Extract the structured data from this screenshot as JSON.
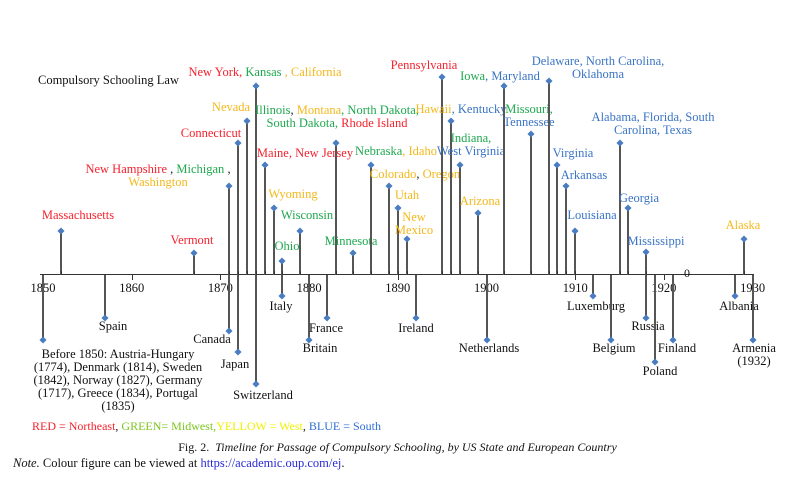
{
  "title": "Compulsory Schooling Law",
  "colors": {
    "NE": "#f5222d",
    "MW": "#1fa84f",
    "W": "#f3b81c",
    "S": "#3a74c4",
    "stem": "#555555",
    "marker": "#4a7cc0"
  },
  "axis": {
    "ticks": [
      "1850",
      "1860",
      "1870",
      "1880",
      "1890",
      "1900",
      "1910",
      "1920",
      "1930"
    ],
    "extra_mark": "0"
  },
  "us_states": [
    {
      "year": 1852,
      "lines": [
        [
          [
            "Massachusetts",
            "NE"
          ]
        ]
      ]
    },
    {
      "year": 1867,
      "lines": [
        [
          [
            "Vermont",
            "NE"
          ]
        ]
      ]
    },
    {
      "year": 1871,
      "lines": [
        [
          [
            "New Hampshire",
            "NE"
          ],
          [
            " , ",
            ""
          ],
          [
            "Michigan",
            "MW"
          ],
          [
            " ,",
            ""
          ]
        ],
        [
          [
            "Washington",
            "W"
          ]
        ]
      ]
    },
    {
      "year": 1872,
      "lines": [
        [
          [
            "Connecticut",
            "NE"
          ]
        ]
      ]
    },
    {
      "year": 1873,
      "lines": [
        [
          [
            "Nevada",
            "W"
          ]
        ]
      ]
    },
    {
      "year": 1874,
      "lines": [
        [
          [
            "New York",
            "NE"
          ],
          [
            ", ",
            "NE"
          ],
          [
            "Kansas",
            "MW"
          ],
          [
            " , ",
            "W"
          ],
          [
            "California",
            "W"
          ]
        ]
      ]
    },
    {
      "year": 1875,
      "lines": [
        [
          [
            "Maine, New Jersey",
            "NE"
          ]
        ]
      ]
    },
    {
      "year": 1876,
      "lines": [
        [
          [
            "Wyoming",
            "W"
          ]
        ]
      ]
    },
    {
      "year": 1877,
      "lines": [
        [
          [
            "Ohio",
            "MW"
          ]
        ]
      ]
    },
    {
      "year": 1879,
      "lines": [
        [
          [
            "Wisconsin",
            "MW"
          ]
        ]
      ]
    },
    {
      "year": 1883,
      "lines": [
        [
          [
            "Illinois",
            "MW"
          ],
          [
            ", ",
            ""
          ],
          [
            "Montana",
            "W"
          ],
          [
            ", ",
            "MW"
          ],
          [
            "North Dakota,",
            "MW"
          ]
        ],
        [
          [
            "South Dakota, ",
            "MW"
          ],
          [
            "Rhode Island",
            "NE"
          ]
        ]
      ]
    },
    {
      "year": 1885,
      "lines": [
        [
          [
            "Minnesota",
            "MW"
          ]
        ]
      ]
    },
    {
      "year": 1887,
      "lines": [
        [
          [
            "Nebraska",
            "MW"
          ],
          [
            ", ",
            "W"
          ],
          [
            "Idaho",
            "W"
          ]
        ]
      ]
    },
    {
      "year": 1889,
      "lines": [
        [
          [
            "Colorado",
            "W"
          ],
          [
            ", ",
            ""
          ],
          [
            "Oregon",
            "W"
          ]
        ]
      ]
    },
    {
      "year": 1890,
      "lines": [
        [
          [
            "Utah",
            "W"
          ]
        ]
      ]
    },
    {
      "year": 1891,
      "lines": [
        [
          [
            "New",
            "W"
          ]
        ],
        [
          [
            "Mexico",
            "W"
          ]
        ]
      ]
    },
    {
      "year": 1895,
      "lines": [
        [
          [
            "Pennsylvania",
            "NE"
          ]
        ]
      ]
    },
    {
      "year": 1896,
      "lines": [
        [
          [
            "Hawaii",
            "W"
          ],
          [
            ", Kentucky",
            "S"
          ]
        ]
      ]
    },
    {
      "year": 1897,
      "lines": [
        [
          [
            "Indiana,",
            "MW"
          ]
        ],
        [
          [
            "West Virginia",
            "S"
          ]
        ]
      ]
    },
    {
      "year": 1899,
      "lines": [
        [
          [
            "Arizona",
            "W"
          ]
        ]
      ]
    },
    {
      "year": 1902,
      "lines": [
        [
          [
            "Iowa",
            "MW"
          ],
          [
            ", Maryland",
            "S"
          ]
        ]
      ]
    },
    {
      "year": 1905,
      "lines": [
        [
          [
            "Missouri,",
            "MW"
          ]
        ],
        [
          [
            "Tennessee",
            "S"
          ]
        ]
      ]
    },
    {
      "year": 1907,
      "lines": [
        [
          [
            "Delaware, North Carolina,",
            "S"
          ]
        ],
        [
          [
            "Oklahoma",
            "S"
          ]
        ]
      ]
    },
    {
      "year": 1908,
      "lines": [
        [
          [
            "Virginia",
            "S"
          ]
        ]
      ]
    },
    {
      "year": 1909,
      "lines": [
        [
          [
            "Arkansas",
            "S"
          ]
        ]
      ]
    },
    {
      "year": 1910,
      "lines": [
        [
          [
            "Louisiana",
            "S"
          ]
        ]
      ]
    },
    {
      "year": 1915,
      "lines": [
        [
          [
            "Alabama, Florida, South",
            "S"
          ]
        ],
        [
          [
            "Carolina, Texas",
            "S"
          ]
        ]
      ]
    },
    {
      "year": 1916,
      "lines": [
        [
          [
            "Georgia",
            "S"
          ]
        ]
      ]
    },
    {
      "year": 1918,
      "lines": [
        [
          [
            "Mississippi",
            "S"
          ]
        ]
      ]
    },
    {
      "year": 1929,
      "lines": [
        [
          [
            "Alaska",
            "W"
          ]
        ]
      ]
    }
  ],
  "countries": [
    {
      "year": 1850,
      "lines": [
        "Before 1850: Austria-Hungary",
        "(1774), Denmark (1814), Sweden",
        "(1842), Norway (1827), Germany",
        "(1717), Greece (1834), Portugal",
        "(1835)"
      ]
    },
    {
      "year": 1857,
      "lines": [
        "Spain"
      ]
    },
    {
      "year": 1871,
      "lines": [
        "Canada"
      ]
    },
    {
      "year": 1872,
      "lines": [
        "Japan"
      ]
    },
    {
      "year": 1874,
      "lines": [
        "Switzerland"
      ]
    },
    {
      "year": 1877,
      "lines": [
        "Italy"
      ]
    },
    {
      "year": 1880,
      "lines": [
        "Britain"
      ]
    },
    {
      "year": 1882,
      "lines": [
        "France"
      ]
    },
    {
      "year": 1892,
      "lines": [
        "Ireland"
      ]
    },
    {
      "year": 1900,
      "lines": [
        "Netherlands"
      ]
    },
    {
      "year": 1912,
      "lines": [
        "Luxemburg"
      ]
    },
    {
      "year": 1914,
      "lines": [
        "Belgium"
      ]
    },
    {
      "year": 1918,
      "lines": [
        "Russia"
      ]
    },
    {
      "year": 1919,
      "lines": [
        "Poland"
      ]
    },
    {
      "year": 1921,
      "lines": [
        "Finland"
      ]
    },
    {
      "year": 1928,
      "lines": [
        "Albania"
      ]
    },
    {
      "year": 1930,
      "lines": [
        "Armenia",
        "(1932)"
      ]
    }
  ],
  "legend": [
    {
      "text": "RED = Northeast",
      "color": "#f5222d"
    },
    {
      "text": ", ",
      "color": "#222222"
    },
    {
      "text": "GREEN= Midwest,",
      "color": "#7cc51e"
    },
    {
      "text": "YELLOW = West",
      "color": "#f0f000"
    },
    {
      "text": ", ",
      "color": "#222222"
    },
    {
      "text": "BLUE = South",
      "color": "#2f6fd8"
    }
  ],
  "caption": {
    "prefix": "Fig. 2.",
    "text": "Timeline for Passage of Compulsory Schooling, by US State and European Country"
  },
  "note": {
    "label": "Note.",
    "text": " Colour figure can be viewed at ",
    "link": "https://academic.oup.com/ej",
    "end": "."
  }
}
